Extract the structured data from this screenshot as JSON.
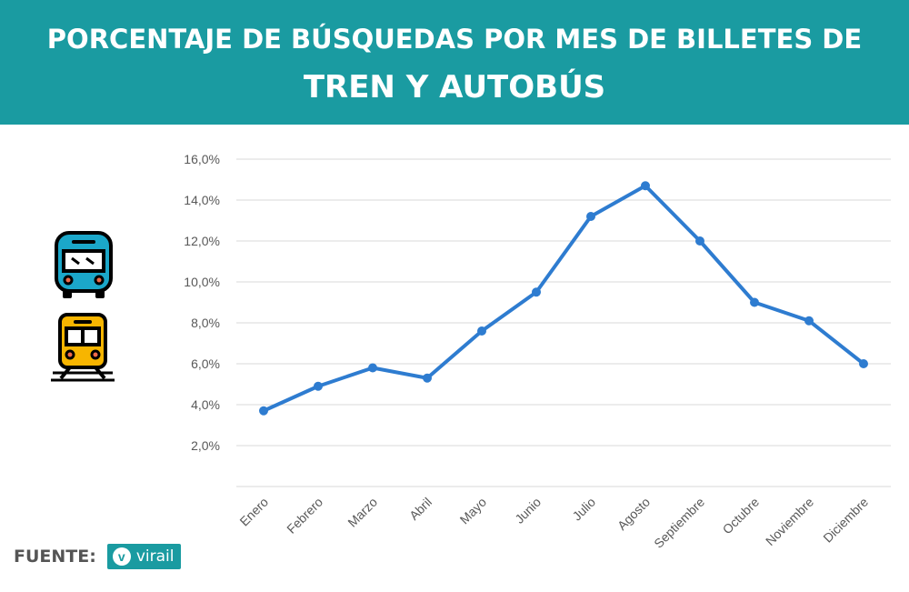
{
  "header": {
    "title_line1": "PORCENTAJE DE BÚSQUEDAS POR MES DE BILLETES DE",
    "title_line2": "TREN Y AUTOBÚS"
  },
  "icons": {
    "bus": "bus-icon",
    "train": "train-icon"
  },
  "source": {
    "label": "FUENTE:",
    "logo_letter": "v",
    "logo_text": "virail"
  },
  "colors": {
    "header_bg": "#1a9ba1",
    "line": "#2e7cd0",
    "grid": "#d9d9d9",
    "axis_text": "#595959"
  },
  "chart_data": {
    "type": "line",
    "categories": [
      "Enero",
      "Febrero",
      "Marzo",
      "Abril",
      "Mayo",
      "Junio",
      "Julio",
      "Agosto",
      "Septiembre",
      "Octubre",
      "Noviembre",
      "Diciembre"
    ],
    "values": [
      3.7,
      4.9,
      5.8,
      5.3,
      7.6,
      9.5,
      13.2,
      14.7,
      12.0,
      9.0,
      8.1,
      6.0
    ],
    "yticks": [
      "2,0%",
      "4,0%",
      "6,0%",
      "8,0%",
      "10,0%",
      "12,0%",
      "14,0%",
      "16,0%"
    ],
    "ylim": [
      0,
      16
    ],
    "grid": true,
    "legend": "none"
  }
}
